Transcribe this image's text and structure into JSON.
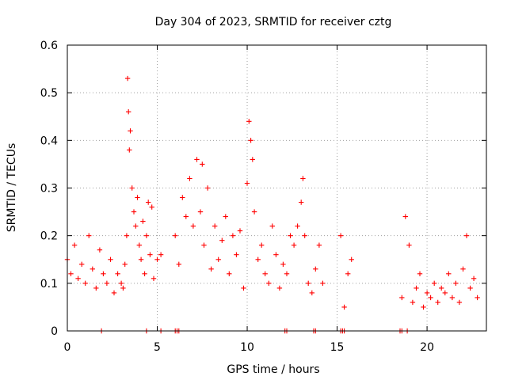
{
  "chart_data": {
    "type": "scatter",
    "title": "Day 304 of 2023, SRMTID for receiver cztg",
    "xlabel": "GPS time / hours",
    "ylabel": "SRMTID / TECUs",
    "xlim": [
      0,
      23.3
    ],
    "ylim": [
      0,
      0.6
    ],
    "x_ticks": [
      0,
      5,
      10,
      15,
      20
    ],
    "x_tick_labels": [
      "0",
      "5",
      "10",
      "15",
      "20"
    ],
    "y_ticks": [
      0,
      0.1,
      0.2,
      0.3,
      0.4,
      0.5,
      0.6
    ],
    "y_tick_labels": [
      "0",
      "0.1",
      "0.2",
      "0.3",
      "0.4",
      "0.5",
      "0.6"
    ],
    "grid": true,
    "marker": "+",
    "series": [
      {
        "name": "SRMTID",
        "color": "#ff0000",
        "x": [
          0.0,
          0.2,
          0.4,
          0.6,
          0.8,
          1.0,
          1.2,
          1.4,
          1.6,
          1.8,
          2.0,
          2.2,
          2.4,
          2.6,
          2.8,
          3.0,
          3.1,
          3.2,
          3.3,
          3.35,
          3.4,
          3.45,
          3.5,
          3.6,
          3.7,
          3.8,
          3.9,
          4.0,
          4.1,
          4.2,
          4.3,
          4.4,
          4.5,
          4.6,
          4.7,
          4.8,
          5.0,
          5.2,
          6.0,
          6.2,
          6.4,
          6.6,
          6.8,
          7.0,
          7.2,
          7.4,
          7.5,
          7.6,
          7.8,
          8.0,
          8.2,
          8.4,
          8.6,
          8.8,
          9.0,
          9.2,
          9.4,
          9.6,
          9.8,
          10.0,
          10.1,
          10.2,
          10.3,
          10.4,
          10.6,
          10.8,
          11.0,
          11.2,
          11.4,
          11.6,
          11.8,
          12.0,
          12.2,
          12.4,
          12.6,
          12.8,
          13.0,
          13.1,
          13.2,
          13.4,
          13.6,
          13.8,
          14.0,
          14.2,
          15.2,
          15.4,
          15.6,
          15.8,
          18.6,
          18.8,
          19.0,
          19.2,
          19.4,
          19.6,
          19.8,
          20.0,
          20.2,
          20.4,
          20.6,
          20.8,
          21.0,
          21.2,
          21.4,
          21.6,
          21.8,
          22.0,
          22.2,
          22.4,
          22.6,
          22.8
        ],
        "y": [
          0.15,
          0.12,
          0.18,
          0.11,
          0.14,
          0.1,
          0.2,
          0.13,
          0.09,
          0.17,
          0.12,
          0.1,
          0.15,
          0.08,
          0.12,
          0.1,
          0.09,
          0.14,
          0.2,
          0.53,
          0.46,
          0.38,
          0.42,
          0.3,
          0.25,
          0.22,
          0.28,
          0.18,
          0.15,
          0.23,
          0.12,
          0.2,
          0.27,
          0.16,
          0.26,
          0.11,
          0.15,
          0.16,
          0.2,
          0.14,
          0.28,
          0.24,
          0.32,
          0.22,
          0.36,
          0.25,
          0.35,
          0.18,
          0.3,
          0.13,
          0.22,
          0.15,
          0.19,
          0.24,
          0.12,
          0.2,
          0.16,
          0.21,
          0.09,
          0.31,
          0.44,
          0.4,
          0.36,
          0.25,
          0.15,
          0.18,
          0.12,
          0.1,
          0.22,
          0.16,
          0.09,
          0.14,
          0.12,
          0.2,
          0.18,
          0.22,
          0.27,
          0.32,
          0.2,
          0.1,
          0.08,
          0.13,
          0.18,
          0.1,
          0.2,
          0.05,
          0.12,
          0.15,
          0.07,
          0.24,
          0.18,
          0.06,
          0.09,
          0.12,
          0.05,
          0.08,
          0.07,
          0.1,
          0.06,
          0.09,
          0.08,
          0.12,
          0.07,
          0.1,
          0.06,
          0.13,
          0.2,
          0.09,
          0.11,
          0.07
        ]
      }
    ],
    "zero_markers_x": [
      1.9,
      4.4,
      5.2,
      6.0,
      6.1,
      6.2,
      12.1,
      12.2,
      13.7,
      13.8,
      15.2,
      15.3,
      15.4,
      18.5,
      18.6,
      18.9
    ]
  }
}
